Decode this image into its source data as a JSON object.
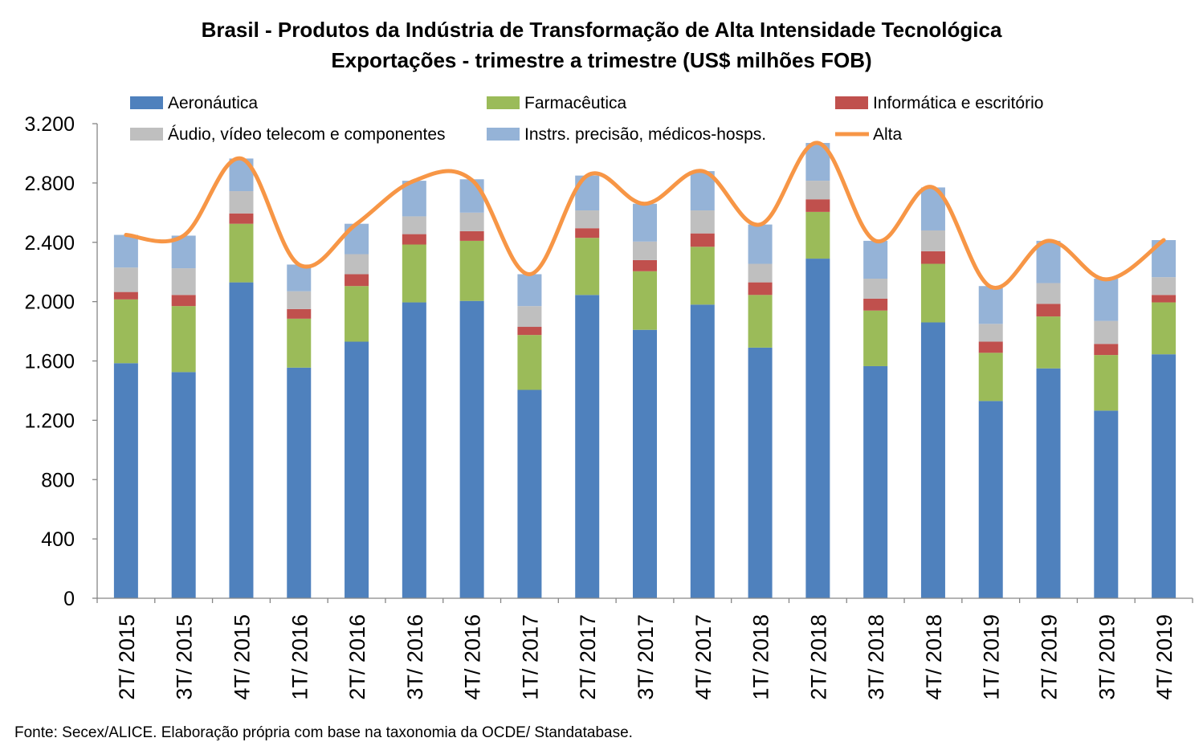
{
  "chart_data": {
    "type": "bar",
    "stacked": true,
    "title": "Brasil - Produtos da Indústria de Transformação de Alta Intensidade Tecnológica",
    "subtitle": "Exportações - trimestre a trimestre (US$ milhões FOB)",
    "ylim": [
      0,
      3200
    ],
    "yticks": [
      0,
      400,
      800,
      1200,
      1600,
      2000,
      2400,
      2800,
      3200
    ],
    "ytick_labels": [
      "0",
      "400",
      "800",
      "1.200",
      "1.600",
      "2.000",
      "2.400",
      "2.800",
      "3.200"
    ],
    "grid": false,
    "legend_position": "top",
    "categories": [
      "2T/ 2015",
      "3T/ 2015",
      "4T/ 2015",
      "1T/ 2016",
      "2T/ 2016",
      "3T/ 2016",
      "4T/ 2016",
      "1T/ 2017",
      "2T/ 2017",
      "3T/ 2017",
      "4T/ 2017",
      "1T/ 2018",
      "2T/ 2018",
      "3T/ 2018",
      "4T/ 2018",
      "1T/ 2019",
      "2T/ 2019",
      "3T/ 2019",
      "4T/ 2019"
    ],
    "series": [
      {
        "name": "Aeronáutica",
        "color": "#4f81bd",
        "values": [
          1585,
          1525,
          2130,
          1555,
          1730,
          1995,
          2005,
          1405,
          2045,
          1810,
          1980,
          1690,
          2290,
          1565,
          1860,
          1330,
          1550,
          1265,
          1645
        ]
      },
      {
        "name": "Farmacêutica",
        "color": "#9bbb59",
        "values": [
          430,
          445,
          395,
          330,
          375,
          390,
          405,
          370,
          385,
          395,
          390,
          355,
          315,
          375,
          395,
          325,
          350,
          375,
          350
        ]
      },
      {
        "name": "Informática e escritório",
        "color": "#c0504d",
        "values": [
          50,
          75,
          70,
          65,
          80,
          70,
          65,
          55,
          65,
          75,
          90,
          85,
          85,
          80,
          85,
          75,
          85,
          75,
          50
        ]
      },
      {
        "name": "Áudio, vídeo telecom e componentes",
        "color": "#bfbfbf",
        "values": [
          165,
          180,
          150,
          120,
          135,
          120,
          125,
          140,
          120,
          125,
          155,
          125,
          125,
          135,
          140,
          120,
          140,
          155,
          120
        ]
      },
      {
        "name": "Instrs. precisão, médicos-hosps.",
        "color": "#95b3d7",
        "values": [
          220,
          220,
          220,
          180,
          205,
          240,
          225,
          215,
          235,
          255,
          265,
          265,
          255,
          255,
          290,
          255,
          285,
          285,
          250
        ]
      }
    ],
    "line_series": {
      "name": "Alta",
      "color": "#f79646",
      "values": [
        2450,
        2445,
        2965,
        2250,
        2525,
        2815,
        2820,
        2185,
        2850,
        2660,
        2880,
        2520,
        3070,
        2410,
        2770,
        2100,
        2410,
        2150,
        2415
      ]
    },
    "source": "Fonte: Secex/ALICE. Elaboração própria com base na taxonomia da OCDE/ Standatabase."
  }
}
